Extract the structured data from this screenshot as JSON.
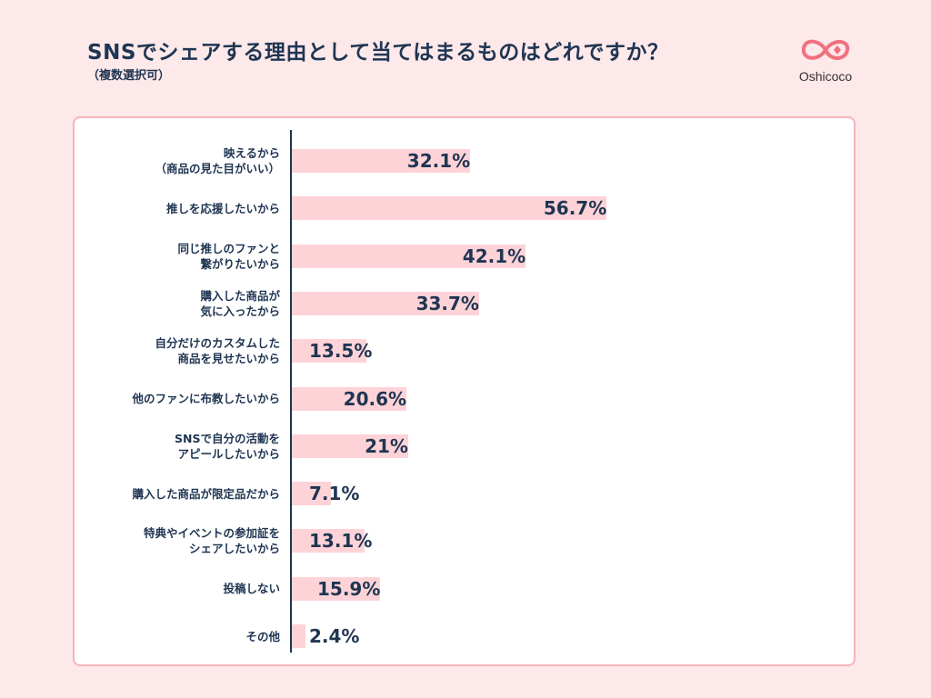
{
  "header": {
    "title": "SNSでシェアする理由として当てはまるものはどれですか？",
    "subtitle": "（複数選択可）",
    "brand": "Oshicoco"
  },
  "colors": {
    "bar": "#fed3d7",
    "text": "#1f3552",
    "background": "#fde8ea",
    "panel_border": "#f7b3ba"
  },
  "chart_data": {
    "type": "bar",
    "orientation": "horizontal",
    "title": "SNSでシェアする理由として当てはまるものはどれですか？",
    "subtitle": "（複数選択可）",
    "unit": "%",
    "xlim": [
      0,
      100
    ],
    "categories": [
      [
        "映えるから",
        "（商品の見た目がいい）"
      ],
      [
        "推しを応援したいから"
      ],
      [
        "同じ推しのファンと",
        "繋がりたいから"
      ],
      [
        "購入した商品が",
        "気に入ったから"
      ],
      [
        "自分だけのカスタムした",
        "商品を見せたいから"
      ],
      [
        "他のファンに布教したいから"
      ],
      [
        "SNSで自分の活動を",
        "アピールしたいから"
      ],
      [
        "購入した商品が限定品だから"
      ],
      [
        "特典やイベントの参加証を",
        "シェアしたいから"
      ],
      [
        "投稿しない"
      ],
      [
        "その他"
      ]
    ],
    "values": [
      32.1,
      56.7,
      42.1,
      33.7,
      13.5,
      20.6,
      21,
      7.1,
      13.1,
      15.9,
      2.4
    ],
    "value_labels": [
      "32.1%",
      "56.7%",
      "42.1%",
      "33.7%",
      "13.5%",
      "20.6%",
      "21%",
      "7.1%",
      "13.1%",
      "15.9%",
      "2.4%"
    ]
  }
}
